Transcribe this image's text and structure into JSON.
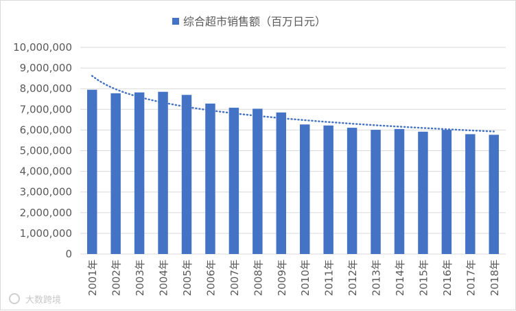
{
  "chart_data": {
    "type": "bar",
    "categories": [
      "2001年",
      "2002年",
      "2003年",
      "2004年",
      "2005年",
      "2006年",
      "2007年",
      "2008年",
      "2009年",
      "2010年",
      "2011年",
      "2012年",
      "2013年",
      "2014年",
      "2015年",
      "2016年",
      "2017年",
      "2018年"
    ],
    "series": [
      {
        "name": "综合超市销售额（百万日元）",
        "values": [
          7950000,
          7780000,
          7820000,
          7850000,
          7700000,
          7280000,
          7080000,
          7030000,
          6850000,
          6270000,
          6220000,
          6110000,
          6010000,
          6050000,
          5920000,
          6010000,
          5800000,
          5770000
        ]
      }
    ],
    "trendline": {
      "type": "logarithmic",
      "start": 8620000,
      "end": 5930000
    },
    "yticks": [
      "0",
      "1,000,000",
      "2,000,000",
      "3,000,000",
      "4,000,000",
      "5,000,000",
      "6,000,000",
      "7,000,000",
      "8,000,000",
      "9,000,000",
      "10,000,000"
    ],
    "ylim": [
      0,
      10000000
    ],
    "grid": true,
    "legend_position": "top",
    "colors": {
      "bar": "#4472c4",
      "trend": "#4472c4",
      "grid": "#d9d9d9"
    }
  },
  "watermark": {
    "text": "大数跨境"
  }
}
